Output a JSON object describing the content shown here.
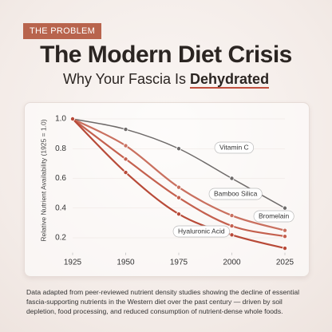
{
  "header": {
    "badge": "THE PROBLEM",
    "title": "The Modern Diet Crisis",
    "subtitle": "Why Your Fascia Is",
    "subtitle_emphasis": "Dehydrated"
  },
  "chart_data": {
    "type": "line",
    "y_label": "Relative Nutrient Availability (1925 = 1.0)",
    "x": [
      1925,
      1950,
      1975,
      2000,
      2025
    ],
    "xlim": [
      1925,
      2025
    ],
    "xticks": [
      1925,
      1950,
      1975,
      2000,
      2025
    ],
    "ylim": [
      0.1,
      1.05
    ],
    "yticks": [
      0.2,
      0.4,
      0.6,
      0.8,
      {
        "value": 1,
        "label": "1.0"
      }
    ],
    "series": [
      {
        "name": "Vitamin C",
        "color": "#6e6a69",
        "values": [
          1,
          0.93,
          0.8,
          0.6,
          0.4
        ]
      },
      {
        "name": "Bromelain",
        "color": "#c9705f",
        "values": [
          1,
          0.82,
          0.54,
          0.35,
          0.25
        ]
      },
      {
        "name": "Bamboo Silica",
        "color": "#c4604e",
        "values": [
          1,
          0.73,
          0.47,
          0.28,
          0.21
        ]
      },
      {
        "name": "Hyaluronic Acid",
        "color": "#b84a38",
        "values": [
          1,
          0.64,
          0.36,
          0.22,
          0.13
        ]
      }
    ]
  },
  "note": "Data adapted from peer-reviewed nutrient density studies showing the decline of essential fascia-supporting nutrients in the Western diet over the past century — driven by soil depletion, food processing, and reduced consumption of nutrient-dense whole foods."
}
